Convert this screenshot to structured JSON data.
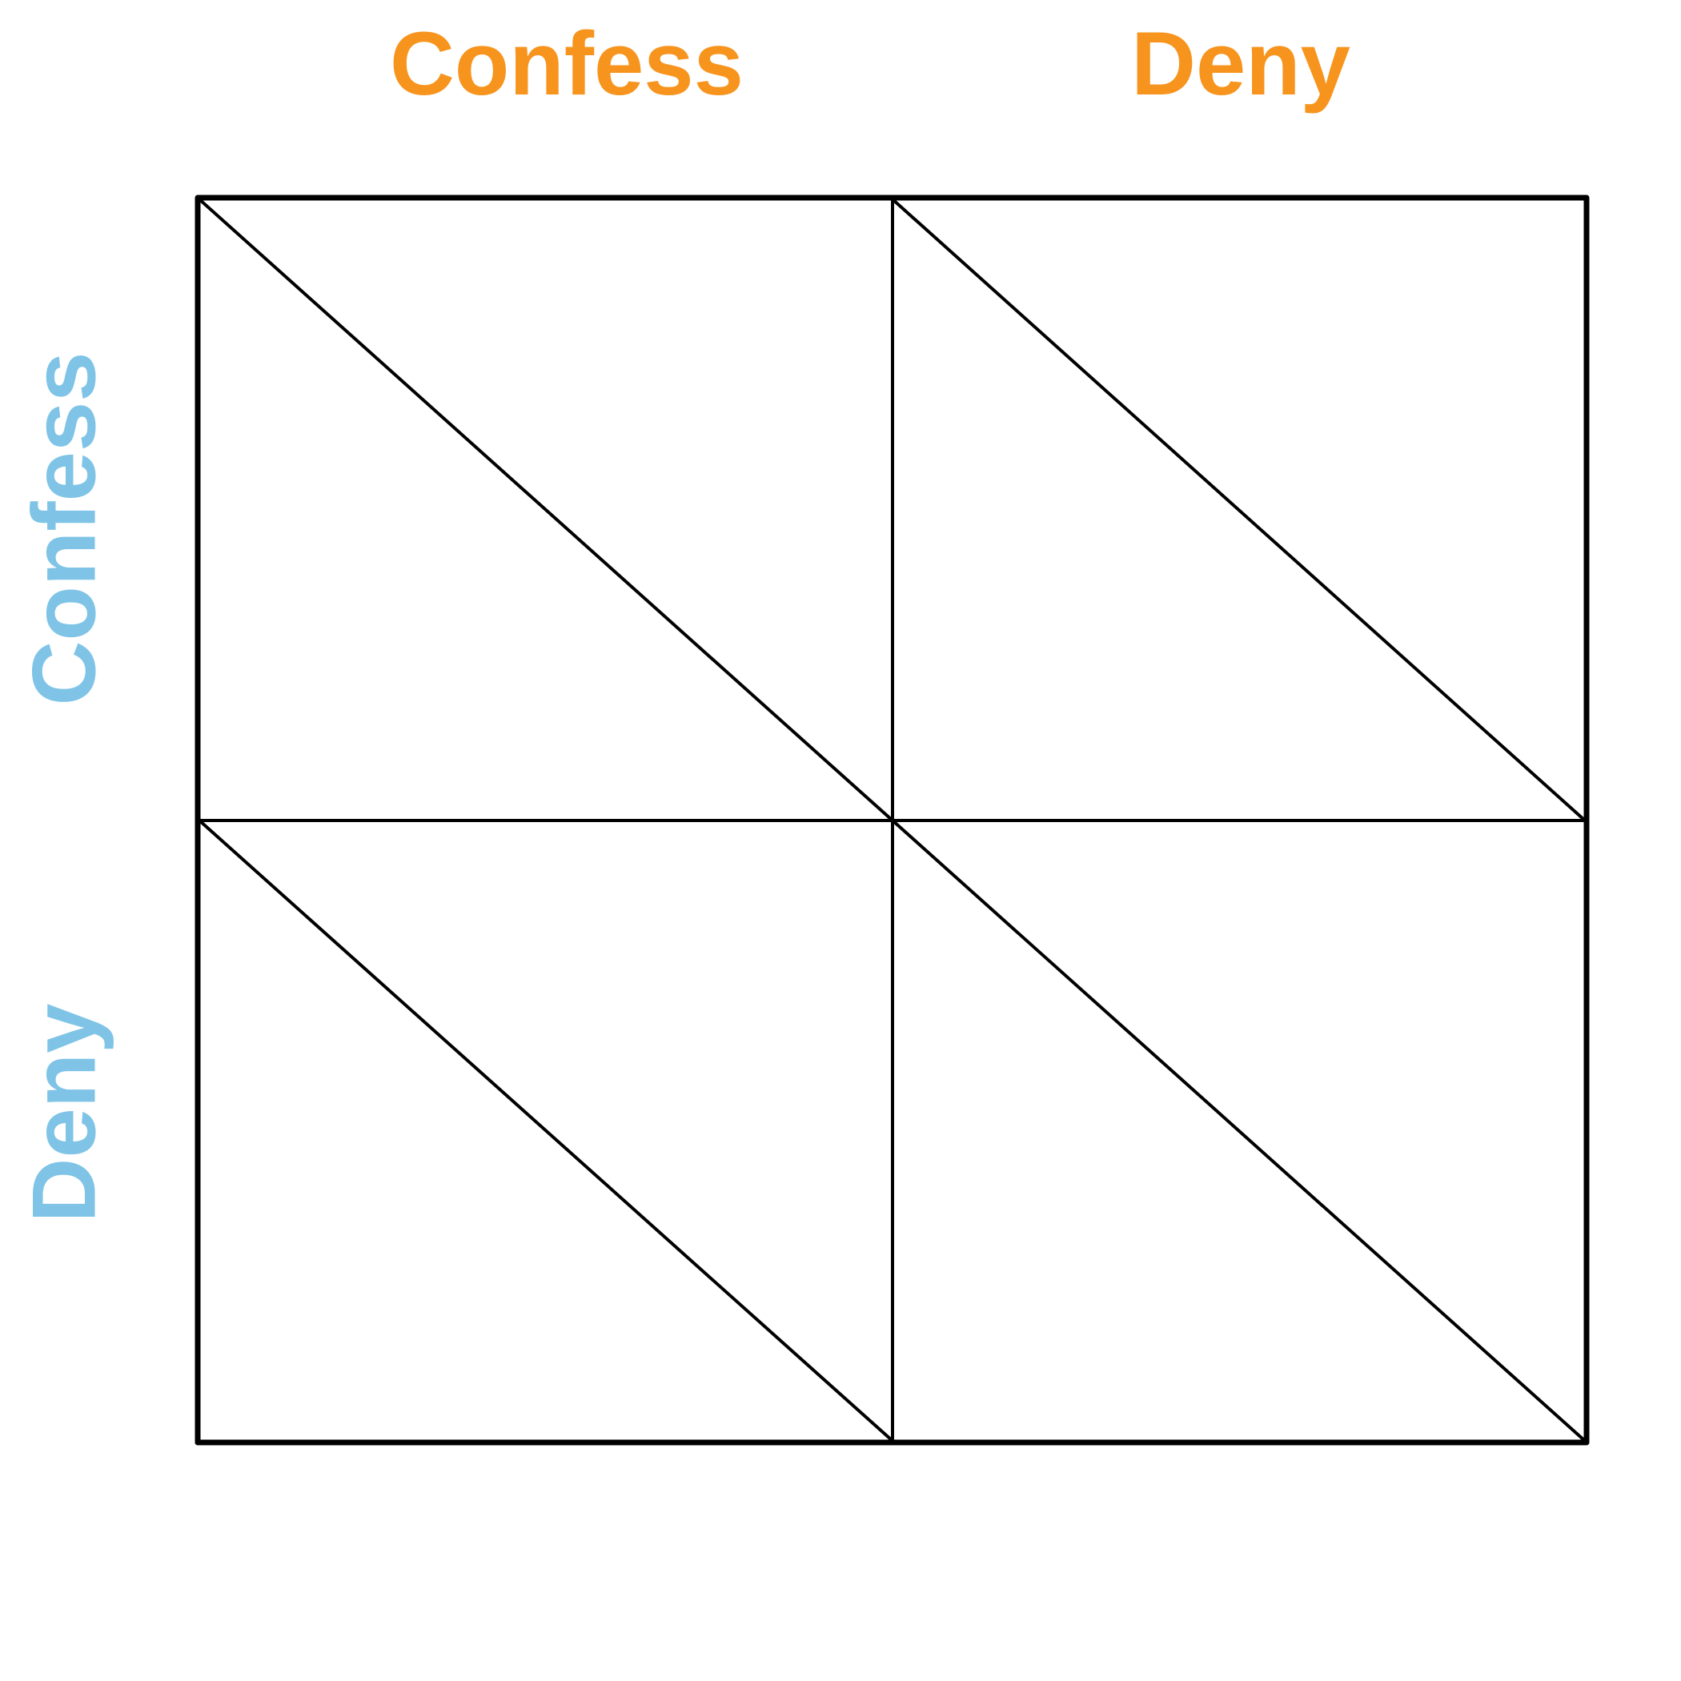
{
  "columns": {
    "labels": [
      "Confess",
      "Deny"
    ],
    "color": "#F7941D"
  },
  "rows": {
    "labels": [
      "Confess",
      "Deny"
    ],
    "color": "#7FC4E6"
  },
  "grid": {
    "rows": 2,
    "cols": 2,
    "line_color": "#000000",
    "cells_split_diagonally": true
  }
}
